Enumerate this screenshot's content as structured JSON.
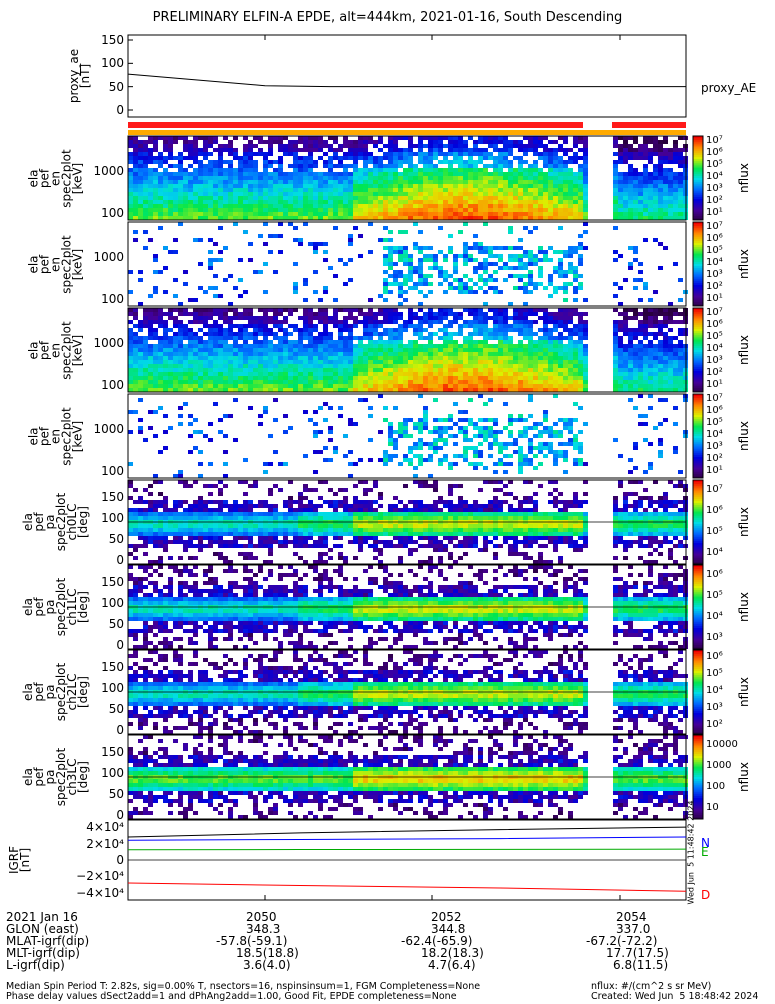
{
  "header": {
    "title": "PRELIMINARY ELFIN-A EPDE, alt=444km, 2021-01-16, South Descending"
  },
  "panels": {
    "proxy": {
      "ylabel": "proxy_ae\n[nT]",
      "yticks": [
        "150",
        "100",
        "50",
        "0"
      ],
      "legend": "proxy_AE"
    },
    "spec_en": [
      {
        "ylabel": "ela\npef\nen\nspec2plot\n[keV]",
        "yticks": [
          "1000",
          "100"
        ]
      },
      {
        "ylabel": "ela\npef\nen\nspec2plot\n[keV]",
        "yticks": [
          "1000",
          "100"
        ]
      },
      {
        "ylabel": "ela\npef\nen\nspec2plot\n[keV]",
        "yticks": [
          "1000",
          "100"
        ]
      },
      {
        "ylabel": "ela\npef\nen\nspec2plot\n[keV]",
        "yticks": [
          "1000",
          "100"
        ]
      }
    ],
    "spec_pa": [
      {
        "ylabel": "ela\npef\npa\nspec2plot\nch0LC\n[deg]",
        "yticks": [
          "150",
          "100",
          "50",
          "0"
        ]
      },
      {
        "ylabel": "ela\npef\npa\nspec2plot\nch1LC\n[deg]",
        "yticks": [
          "150",
          "100",
          "50",
          "0"
        ]
      },
      {
        "ylabel": "ela\npef\npa\nspec2plot\nch2LC\n[deg]",
        "yticks": [
          "150",
          "100",
          "50",
          "0"
        ]
      },
      {
        "ylabel": "ela\npef\npa\nspec2plot\nch3LC\n[deg]",
        "yticks": [
          "150",
          "100",
          "50",
          "0"
        ]
      }
    ],
    "colorbars": [
      {
        "label": "nflux",
        "ticks": [
          "10⁷",
          "10⁶",
          "10⁵",
          "10⁴",
          "10³",
          "10²",
          "10¹"
        ]
      },
      {
        "label": "nflux",
        "ticks": [
          "10⁷",
          "10⁶",
          "10⁵",
          "10⁴",
          "10³",
          "10²",
          "10¹"
        ]
      },
      {
        "label": "nflux",
        "ticks": [
          "10⁷",
          "10⁶",
          "10⁵",
          "10⁴",
          "10³",
          "10²",
          "10¹"
        ]
      },
      {
        "label": "nflux",
        "ticks": [
          "10⁷",
          "10⁶",
          "10⁵",
          "10⁴",
          "10³",
          "10²",
          "10¹"
        ]
      },
      {
        "label": "nflux",
        "ticks": [
          "10⁷",
          "10⁶",
          "10⁵",
          "10⁴"
        ]
      },
      {
        "label": "nflux",
        "ticks": [
          "10⁶",
          "10⁵",
          "10⁴",
          "10³"
        ]
      },
      {
        "label": "nflux",
        "ticks": [
          "10⁶",
          "10⁵",
          "10⁴",
          "10³",
          "10²"
        ]
      },
      {
        "label": "nflux",
        "ticks": [
          "10000",
          "1000",
          "100",
          "10"
        ]
      }
    ],
    "igrf": {
      "ylabel": "IGRF\n[nT]",
      "yticks": [
        "4×10⁴",
        "2×10⁴",
        "0",
        "−2×10⁴",
        "−4×10⁴"
      ],
      "legend": [
        "N",
        "E",
        "D"
      ],
      "timestamp": "Wed Jun  5 11:48:42 2024"
    }
  },
  "bottom": {
    "date": "2021 Jan 16",
    "rows": [
      {
        "label": "GLON (east)",
        "values": [
          "348.3",
          "344.8",
          "337.0"
        ]
      },
      {
        "label": "MLAT-igrf(dip)",
        "values": [
          "-57.8(-59.1)",
          "-62.4(-65.9)",
          "-67.2(-72.2)"
        ]
      },
      {
        "label": "MLT-igrf(dip)",
        "values": [
          "18.5(18.8)",
          "18.2(18.3)",
          "17.7(17.5)"
        ]
      },
      {
        "label": "L-igrf(dip)",
        "values": [
          "3.6(4.0)",
          "4.7(6.4)",
          "6.8(11.5)"
        ]
      }
    ],
    "times": [
      "2050",
      "2052",
      "2054"
    ],
    "footer_left_1": "Median Spin Period T: 2.82s, sig=0.00% T, nsectors=16, nspinsinsum=1, FGM Completeness=None",
    "footer_left_2": "Phase delay values dSect2add=1 and dPhAng2add=1.00, Good Fit, EPDE completeness=None",
    "footer_right_1": "nflux: #/(cm^2 s sr MeV)",
    "footer_right_2": "Created: Wed Jun  5 18:48:42 2024"
  },
  "chart_data": [
    {
      "type": "line",
      "title": "PRELIMINARY ELFIN-A EPDE, alt=444km, 2021-01-16, South Descending",
      "series": [
        {
          "name": "proxy_AE",
          "x": [
            "2049.0",
            "2050.0",
            "2051.0",
            "2052.0",
            "2053.0",
            "2054.0",
            "2054.7"
          ],
          "values": [
            77,
            52,
            50,
            50,
            50,
            50,
            50
          ]
        }
      ],
      "ylim": [
        0,
        150
      ],
      "ylabel": "proxy_ae [nT]"
    },
    {
      "type": "heatmap",
      "x_ticks": [
        "2050",
        "2052",
        "2054"
      ],
      "panels": [
        {
          "ylabel": "[keV]",
          "yticks": [
            1000,
            100
          ],
          "log": true
        },
        {
          "ylabel": "[keV]",
          "yticks": [
            1000,
            100
          ],
          "log": true
        },
        {
          "ylabel": "[keV]",
          "yticks": [
            1000,
            100
          ],
          "log": true
        },
        {
          "ylabel": "[keV]",
          "yticks": [
            1000,
            100
          ],
          "log": true
        },
        {
          "ylabel": "[deg]",
          "yticks": [
            150,
            100,
            50,
            0
          ]
        },
        {
          "ylabel": "[deg]",
          "yticks": [
            150,
            100,
            50,
            0
          ]
        },
        {
          "ylabel": "[deg]",
          "yticks": [
            150,
            100,
            50,
            0
          ]
        },
        {
          "ylabel": "[deg]",
          "yticks": [
            150,
            100,
            50,
            0
          ]
        }
      ]
    },
    {
      "type": "line",
      "ylabel": "IGRF [nT]",
      "ylim": [
        -45000,
        45000
      ],
      "series": [
        {
          "name": "N",
          "values": [
            24000,
            25000,
            26000,
            28000
          ]
        },
        {
          "name": "E",
          "values": [
            12500,
            12700,
            12900,
            13200
          ]
        },
        {
          "name": "D",
          "values": [
            -28000,
            -31000,
            -34000,
            -38000
          ]
        }
      ],
      "extra_line": [
        28000,
        33000,
        37000,
        40000
      ],
      "colors": {
        "N": "#0000ff",
        "E": "#00aa00",
        "D": "#ff0000",
        "total": "#000000"
      }
    }
  ]
}
